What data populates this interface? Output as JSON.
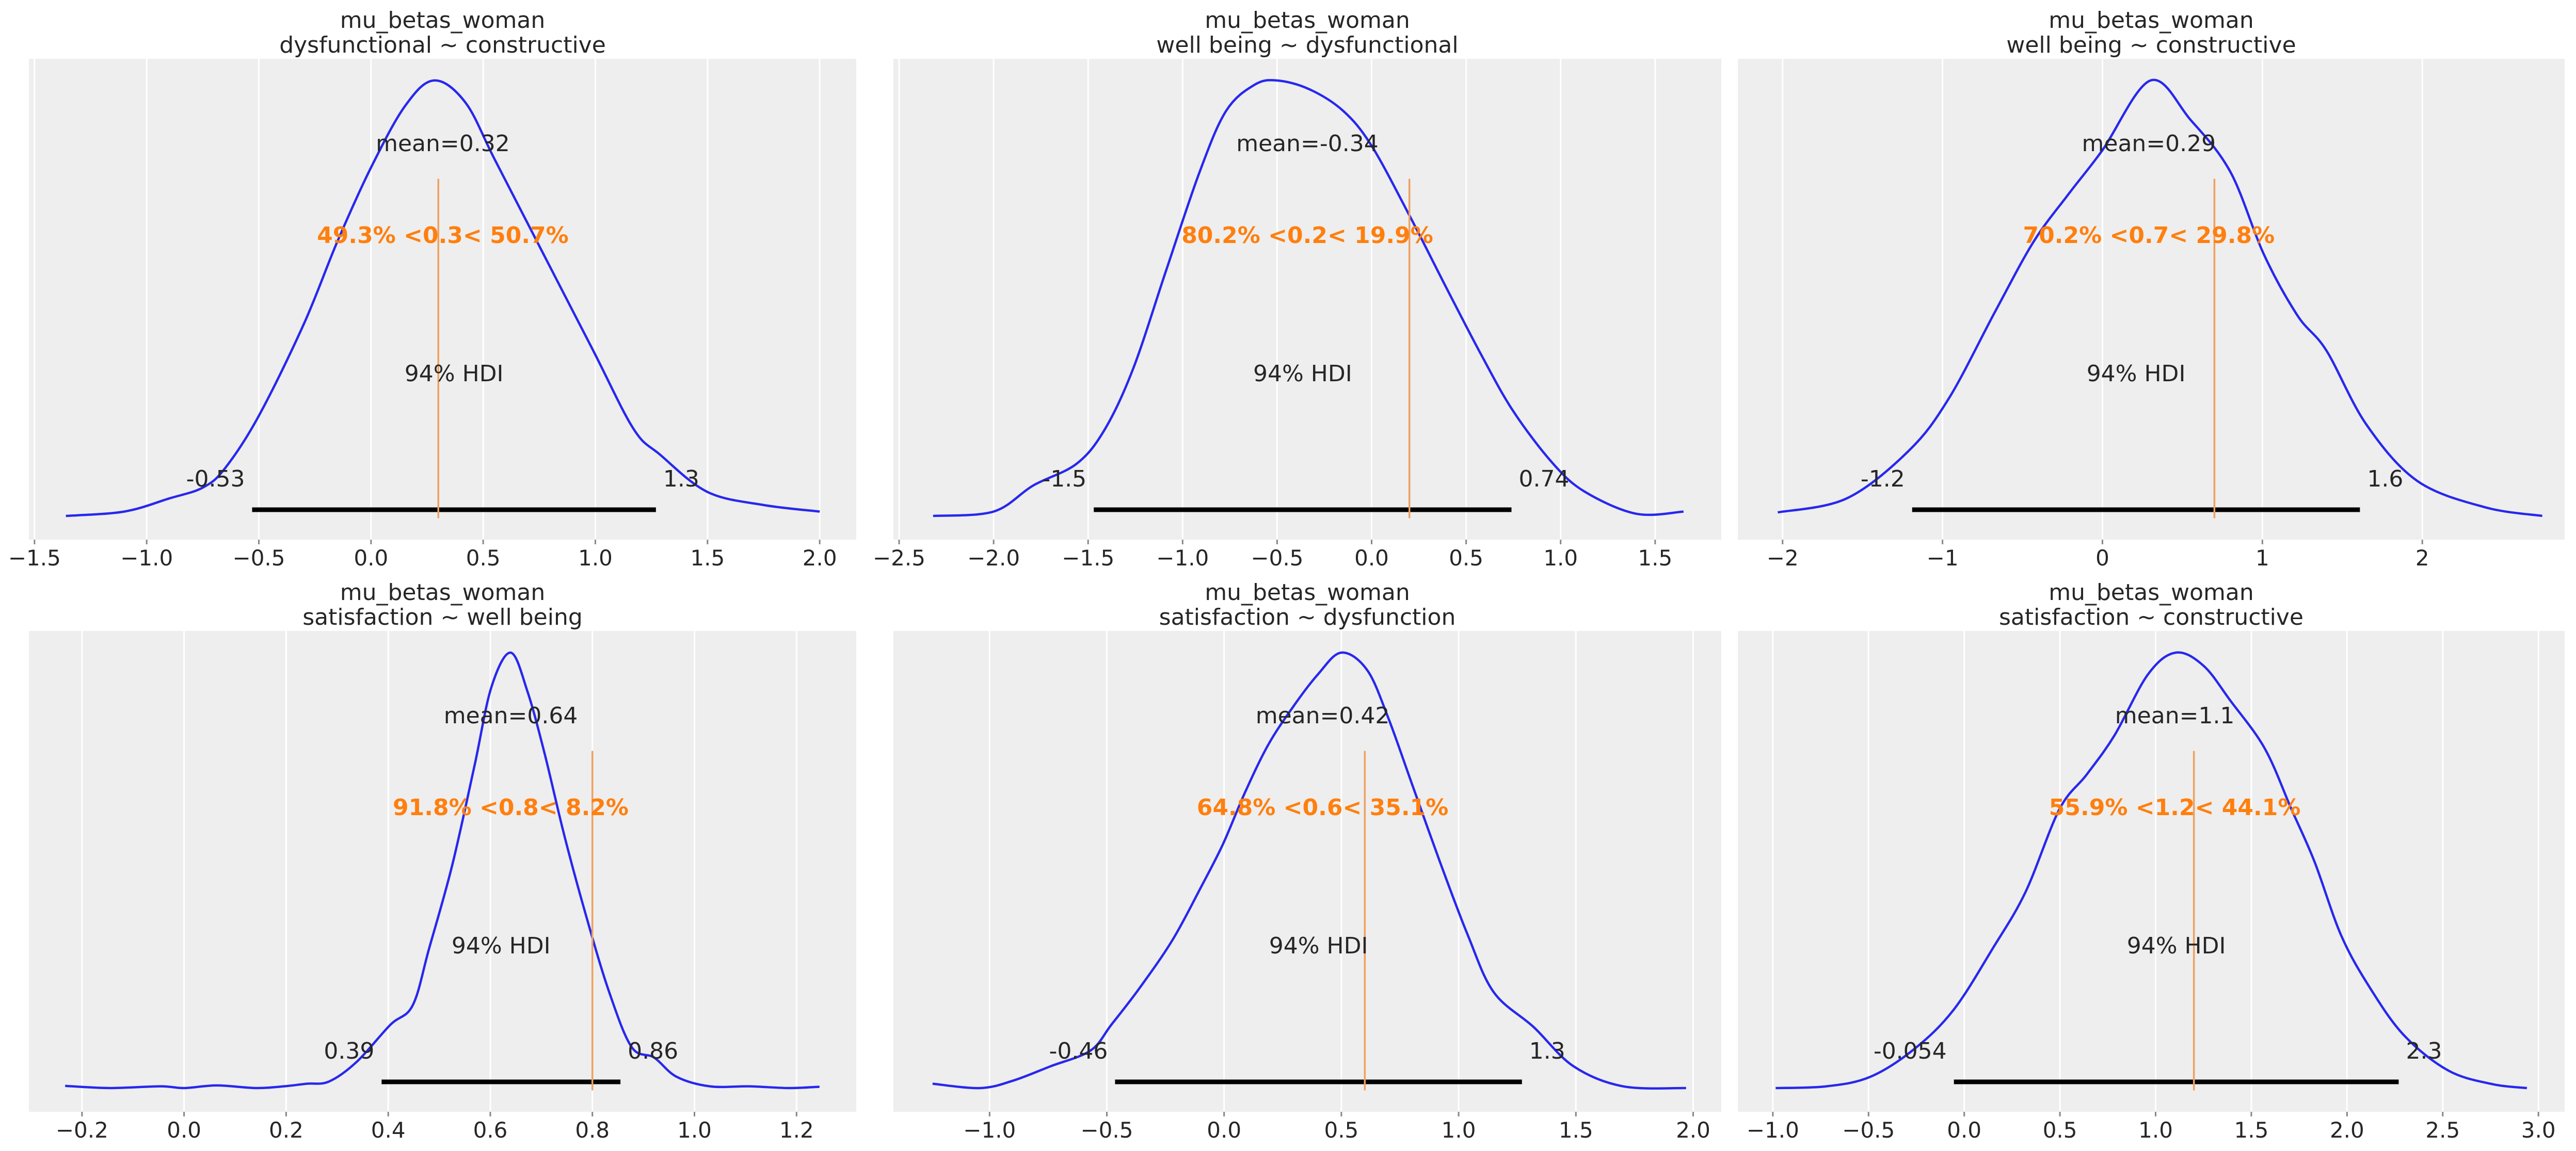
{
  "colors": {
    "background": "#eeeeee",
    "grid": "#ffffff",
    "kde": "#2727ee",
    "reference": "#f0a060",
    "reference_text": "#ff7f0e",
    "hdi_bar": "#000000",
    "tick_mark": "#888888"
  },
  "chart_data": [
    {
      "type": "line",
      "title": "mu_betas_woman",
      "subtitle": "dysfunctional ~ constructive",
      "xlim": [
        -1.525,
        2.163
      ],
      "xticks": [
        -1.5,
        -1.0,
        -0.5,
        0.0,
        0.5,
        1.0,
        1.5,
        2.0
      ],
      "xtick_labels": [
        "−1.5",
        "−1.0",
        "−0.5",
        "0.0",
        "0.5",
        "1.0",
        "1.5",
        "2.0"
      ],
      "grid": true,
      "mean_label": "mean=0.32",
      "mean": 0.32,
      "ref_val": 0.3,
      "ref_label": "49.3% <0.3< 50.7%",
      "hdi_label": "94% HDI",
      "hdi": [
        -0.53,
        1.27
      ],
      "hdi_low_label": "-0.53",
      "hdi_high_label": "1.3",
      "kde": [
        [
          -1.36,
          0
        ],
        [
          -1.1,
          0.01
        ],
        [
          -0.9,
          0.04
        ],
        [
          -0.75,
          0.065
        ],
        [
          -0.65,
          0.11
        ],
        [
          -0.5,
          0.23
        ],
        [
          -0.3,
          0.44
        ],
        [
          -0.15,
          0.63
        ],
        [
          0,
          0.8
        ],
        [
          0.15,
          0.94
        ],
        [
          0.28,
          1.0
        ],
        [
          0.42,
          0.95
        ],
        [
          0.55,
          0.82
        ],
        [
          0.74,
          0.63
        ],
        [
          0.99,
          0.38
        ],
        [
          1.17,
          0.2
        ],
        [
          1.29,
          0.14
        ],
        [
          1.5,
          0.055
        ],
        [
          1.75,
          0.025
        ],
        [
          2.0,
          0.01
        ]
      ]
    },
    {
      "type": "line",
      "title": "mu_betas_woman",
      "subtitle": "well being ~ dysfunctional",
      "xlim": [
        -2.53,
        1.85
      ],
      "xticks": [
        -2.5,
        -2.0,
        -1.5,
        -1.0,
        -0.5,
        0.0,
        0.5,
        1.0,
        1.5
      ],
      "xtick_labels": [
        "−2.5",
        "−2.0",
        "−1.5",
        "−1.0",
        "−0.5",
        "0.0",
        "0.5",
        "1.0",
        "1.5"
      ],
      "grid": true,
      "mean_label": "mean=-0.34",
      "mean": -0.34,
      "ref_val": 0.2,
      "ref_label": "80.2% <0.2< 19.9%",
      "hdi_label": "94% HDI",
      "hdi": [
        -1.47,
        0.74
      ],
      "hdi_low_label": "-1.5",
      "hdi_high_label": "0.74",
      "kde": [
        [
          -2.32,
          0
        ],
        [
          -2.0,
          0.01
        ],
        [
          -1.79,
          0.07
        ],
        [
          -1.56,
          0.12
        ],
        [
          -1.41,
          0.2
        ],
        [
          -1.26,
          0.34
        ],
        [
          -1.09,
          0.56
        ],
        [
          -0.91,
          0.79
        ],
        [
          -0.77,
          0.93
        ],
        [
          -0.62,
          0.99
        ],
        [
          -0.5,
          1.0
        ],
        [
          -0.33,
          0.98
        ],
        [
          -0.15,
          0.93
        ],
        [
          0,
          0.85
        ],
        [
          0.2,
          0.69
        ],
        [
          0.4,
          0.52
        ],
        [
          0.58,
          0.37
        ],
        [
          0.75,
          0.24
        ],
        [
          0.96,
          0.12
        ],
        [
          1.13,
          0.055
        ],
        [
          1.4,
          0.005
        ],
        [
          1.65,
          0.01
        ]
      ]
    },
    {
      "type": "line",
      "title": "mu_betas_woman",
      "subtitle": "well being ~ constructive",
      "xlim": [
        -2.28,
        2.89
      ],
      "xticks": [
        -2,
        -1,
        0,
        1,
        2
      ],
      "xtick_labels": [
        "−2",
        "−1",
        "0",
        "1",
        "2"
      ],
      "grid": true,
      "mean_label": "mean=0.29",
      "mean": 0.29,
      "ref_val": 0.7,
      "ref_label": "70.2% <0.7< 29.8%",
      "hdi_label": "94% HDI",
      "hdi": [
        -1.19,
        1.61
      ],
      "hdi_low_label": "-1.2",
      "hdi_high_label": "1.6",
      "kde": [
        [
          -2.03,
          0.008
        ],
        [
          -1.6,
          0.04
        ],
        [
          -1.21,
          0.15
        ],
        [
          -0.96,
          0.27
        ],
        [
          -0.67,
          0.47
        ],
        [
          -0.43,
          0.63
        ],
        [
          -0.21,
          0.74
        ],
        [
          0.0,
          0.84
        ],
        [
          0.3,
          1.0
        ],
        [
          0.55,
          0.91
        ],
        [
          0.8,
          0.79
        ],
        [
          1.01,
          0.6
        ],
        [
          1.22,
          0.46
        ],
        [
          1.4,
          0.38
        ],
        [
          1.65,
          0.21
        ],
        [
          1.97,
          0.08
        ],
        [
          2.39,
          0.02
        ],
        [
          2.75,
          0
        ]
      ]
    },
    {
      "type": "line",
      "title": "mu_betas_woman",
      "subtitle": "satisfaction ~ well being",
      "xlim": [
        -0.304,
        1.317
      ],
      "xticks": [
        -0.2,
        0.0,
        0.2,
        0.4,
        0.6,
        0.8,
        1.0,
        1.2
      ],
      "xtick_labels": [
        "−0.2",
        "0.0",
        "0.2",
        "0.4",
        "0.6",
        "0.8",
        "1.0",
        "1.2"
      ],
      "grid": true,
      "mean_label": "mean=0.64",
      "mean": 0.64,
      "ref_val": 0.8,
      "ref_label": "91.8% <0.8< 8.2%",
      "hdi_label": "94% HDI",
      "hdi": [
        0.387,
        0.855
      ],
      "hdi_low_label": "0.39",
      "hdi_high_label": "0.86",
      "kde": [
        [
          -0.233,
          0.005
        ],
        [
          -0.145,
          0
        ],
        [
          -0.046,
          0.004
        ],
        [
          0,
          0
        ],
        [
          0.064,
          0.006
        ],
        [
          0.14,
          0
        ],
        [
          0.196,
          0.004
        ],
        [
          0.24,
          0.01
        ],
        [
          0.284,
          0.015
        ],
        [
          0.338,
          0.06
        ],
        [
          0.404,
          0.145
        ],
        [
          0.448,
          0.19
        ],
        [
          0.48,
          0.32
        ],
        [
          0.525,
          0.51
        ],
        [
          0.569,
          0.74
        ],
        [
          0.602,
          0.92
        ],
        [
          0.64,
          1.0
        ],
        [
          0.673,
          0.91
        ],
        [
          0.706,
          0.77
        ],
        [
          0.745,
          0.58
        ],
        [
          0.789,
          0.39
        ],
        [
          0.833,
          0.22
        ],
        [
          0.877,
          0.094
        ],
        [
          0.921,
          0.07
        ],
        [
          0.965,
          0.026
        ],
        [
          1.03,
          0.004
        ],
        [
          1.108,
          0.004
        ],
        [
          1.185,
          0
        ],
        [
          1.245,
          0.003
        ]
      ]
    },
    {
      "type": "line",
      "title": "mu_betas_woman",
      "subtitle": "satisfaction ~ dysfunction",
      "xlim": [
        -1.41,
        2.12
      ],
      "xticks": [
        -1.0,
        -0.5,
        0.0,
        0.5,
        1.0,
        1.5,
        2.0
      ],
      "xtick_labels": [
        "−1.0",
        "−0.5",
        "0.0",
        "0.5",
        "1.0",
        "1.5",
        "2.0"
      ],
      "grid": true,
      "mean_label": "mean=0.42",
      "mean": 0.42,
      "ref_val": 0.6,
      "ref_label": "64.8% <0.6< 35.1%",
      "hdi_label": "94% HDI",
      "hdi": [
        -0.465,
        1.27
      ],
      "hdi_low_label": "-0.46",
      "hdi_high_label": "1.3",
      "kde": [
        [
          -1.243,
          0.01
        ],
        [
          -1.04,
          0
        ],
        [
          -0.9,
          0.017
        ],
        [
          -0.74,
          0.05
        ],
        [
          -0.57,
          0.086
        ],
        [
          -0.48,
          0.146
        ],
        [
          -0.36,
          0.23
        ],
        [
          -0.22,
          0.34
        ],
        [
          -0.1,
          0.46
        ],
        [
          -0.005,
          0.56
        ],
        [
          0.09,
          0.68
        ],
        [
          0.19,
          0.79
        ],
        [
          0.3,
          0.88
        ],
        [
          0.4,
          0.95
        ],
        [
          0.5,
          1.0
        ],
        [
          0.61,
          0.96
        ],
        [
          0.7,
          0.85
        ],
        [
          0.8,
          0.7
        ],
        [
          0.92,
          0.52
        ],
        [
          1.04,
          0.35
        ],
        [
          1.15,
          0.22
        ],
        [
          1.32,
          0.14
        ],
        [
          1.49,
          0.05
        ],
        [
          1.7,
          0.004
        ],
        [
          1.97,
          0
        ]
      ]
    },
    {
      "type": "line",
      "title": "mu_betas_woman",
      "subtitle": "satisfaction ~ constructive",
      "xlim": [
        -1.183,
        3.137
      ],
      "xticks": [
        -1.0,
        -0.5,
        0.0,
        0.5,
        1.0,
        1.5,
        2.0,
        2.5,
        3.0
      ],
      "xtick_labels": [
        "−1.0",
        "−0.5",
        "0.0",
        "0.5",
        "1.0",
        "1.5",
        "2.0",
        "2.5",
        "3.0"
      ],
      "grid": true,
      "mean_label": "mean=1.1",
      "mean": 1.1,
      "ref_val": 1.2,
      "ref_label": "55.9% <1.2< 44.1%",
      "hdi_label": "94% HDI",
      "hdi": [
        -0.054,
        2.27
      ],
      "hdi_low_label": "-0.054",
      "hdi_high_label": "2.3",
      "kde": [
        [
          -0.985,
          0
        ],
        [
          -0.72,
          0.004
        ],
        [
          -0.49,
          0.026
        ],
        [
          -0.26,
          0.09
        ],
        [
          -0.055,
          0.18
        ],
        [
          0.148,
          0.32
        ],
        [
          0.32,
          0.45
        ],
        [
          0.497,
          0.64
        ],
        [
          0.64,
          0.72
        ],
        [
          0.785,
          0.81
        ],
        [
          0.96,
          0.95
        ],
        [
          1.105,
          1.0
        ],
        [
          1.25,
          0.97
        ],
        [
          1.39,
          0.89
        ],
        [
          1.57,
          0.78
        ],
        [
          1.71,
          0.64
        ],
        [
          1.83,
          0.52
        ],
        [
          1.97,
          0.35
        ],
        [
          2.12,
          0.23
        ],
        [
          2.3,
          0.12
        ],
        [
          2.53,
          0.04
        ],
        [
          2.76,
          0.009
        ],
        [
          2.94,
          0
        ]
      ]
    }
  ]
}
